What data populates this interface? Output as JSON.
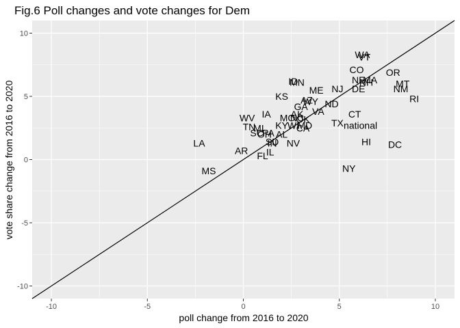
{
  "chart_data": {
    "type": "scatter",
    "title": "Fig.6 Poll changes and vote changes for Dem",
    "xlabel": "poll change from 2016 to 2020",
    "ylabel": "vote share change from 2016 to 2020",
    "xlim": [
      -11,
      11
    ],
    "ylim": [
      -11,
      11
    ],
    "xticks": [
      -10,
      -5,
      0,
      5,
      10
    ],
    "yticks": [
      -10,
      -5,
      0,
      5,
      10
    ],
    "grid": true,
    "panel_background": "#ebebeb",
    "grid_color": "#ffffff",
    "reference_line": {
      "slope": 1,
      "intercept": 0
    },
    "points": [
      {
        "label": "WA",
        "x": 6.2,
        "y": 8.3
      },
      {
        "label": "VT",
        "x": 6.3,
        "y": 8.1
      },
      {
        "label": "CO",
        "x": 5.9,
        "y": 7.1
      },
      {
        "label": "OR",
        "x": 7.8,
        "y": 6.9
      },
      {
        "label": "NE",
        "x": 6.0,
        "y": 6.3
      },
      {
        "label": "MA",
        "x": 6.6,
        "y": 6.3
      },
      {
        "label": "NH",
        "x": 6.4,
        "y": 6.1
      },
      {
        "label": "MT",
        "x": 8.3,
        "y": 6.0
      },
      {
        "label": "DE",
        "x": 6.0,
        "y": 5.6
      },
      {
        "label": "NM",
        "x": 8.2,
        "y": 5.6
      },
      {
        "label": "RI",
        "x": 8.9,
        "y": 4.8
      },
      {
        "label": "ID",
        "x": 2.6,
        "y": 6.2
      },
      {
        "label": "MN",
        "x": 2.8,
        "y": 6.1
      },
      {
        "label": "ME",
        "x": 3.8,
        "y": 5.5
      },
      {
        "label": "NJ",
        "x": 4.9,
        "y": 5.6
      },
      {
        "label": "KS",
        "x": 2.0,
        "y": 5.0
      },
      {
        "label": "AZ",
        "x": 3.3,
        "y": 4.7
      },
      {
        "label": "WY",
        "x": 3.5,
        "y": 4.6
      },
      {
        "label": "ND",
        "x": 4.6,
        "y": 4.4
      },
      {
        "label": "GA",
        "x": 3.0,
        "y": 4.2
      },
      {
        "label": "VA",
        "x": 3.9,
        "y": 3.8
      },
      {
        "label": "AK",
        "x": 2.8,
        "y": 3.6
      },
      {
        "label": "CT",
        "x": 5.8,
        "y": 3.6
      },
      {
        "label": "IA",
        "x": 1.2,
        "y": 3.6
      },
      {
        "label": "WV",
        "x": 0.2,
        "y": 3.3
      },
      {
        "label": "MO",
        "x": 2.3,
        "y": 3.3
      },
      {
        "label": "NC",
        "x": 2.8,
        "y": 3.3
      },
      {
        "label": "OK",
        "x": 3.1,
        "y": 3.2
      },
      {
        "label": "TX",
        "x": 4.9,
        "y": 2.9
      },
      {
        "label": "national",
        "x": 6.1,
        "y": 2.7
      },
      {
        "label": "KY",
        "x": 2.0,
        "y": 2.7
      },
      {
        "label": "WI",
        "x": 2.6,
        "y": 2.7
      },
      {
        "label": "MD",
        "x": 3.2,
        "y": 2.7
      },
      {
        "label": "CA",
        "x": 3.1,
        "y": 2.5
      },
      {
        "label": "TN",
        "x": 0.3,
        "y": 2.6
      },
      {
        "label": "MI",
        "x": 0.8,
        "y": 2.5
      },
      {
        "label": "SC",
        "x": 0.7,
        "y": 2.1
      },
      {
        "label": "OH",
        "x": 1.1,
        "y": 2.0
      },
      {
        "label": "PA",
        "x": 1.3,
        "y": 2.1
      },
      {
        "label": "AL",
        "x": 2.0,
        "y": 2.0
      },
      {
        "label": "SD",
        "x": 1.5,
        "y": 1.4
      },
      {
        "label": "IN",
        "x": 1.5,
        "y": 1.3
      },
      {
        "label": "NV",
        "x": 2.6,
        "y": 1.3
      },
      {
        "label": "HI",
        "x": 6.4,
        "y": 1.4
      },
      {
        "label": "DC",
        "x": 7.9,
        "y": 1.2
      },
      {
        "label": "LA",
        "x": -2.3,
        "y": 1.3
      },
      {
        "label": "AR",
        "x": -0.1,
        "y": 0.7
      },
      {
        "label": "IL",
        "x": 1.4,
        "y": 0.6
      },
      {
        "label": "FL",
        "x": 1.0,
        "y": 0.3
      },
      {
        "label": "NY",
        "x": 5.5,
        "y": -0.7
      },
      {
        "label": "MS",
        "x": -1.8,
        "y": -0.9
      }
    ]
  }
}
